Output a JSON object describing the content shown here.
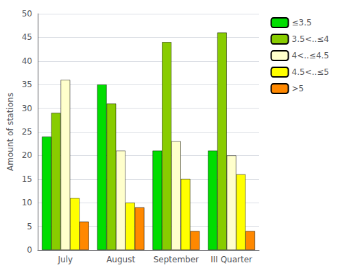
{
  "chart_data": {
    "type": "bar",
    "categories": [
      "July",
      "August",
      "September",
      "III Quarter"
    ],
    "series": [
      {
        "name": "≤3.5",
        "color": "#00dd00",
        "values": [
          24,
          35,
          21,
          21
        ]
      },
      {
        "name": "3.5<..≤4",
        "color": "#88cc00",
        "values": [
          29,
          31,
          44,
          46
        ]
      },
      {
        "name": "4<..≤4.5",
        "color": "#ffffcc",
        "values": [
          36,
          21,
          23,
          20
        ]
      },
      {
        "name": "4.5<..≤5",
        "color": "#ffff00",
        "values": [
          11,
          10,
          15,
          16
        ]
      },
      {
        "name": ">5",
        "color": "#ff8800",
        "values": [
          6,
          9,
          4,
          4
        ]
      }
    ],
    "ylabel": "Amount of stations",
    "ylim": [
      0,
      50
    ],
    "yticks": [
      0,
      5,
      10,
      15,
      20,
      25,
      30,
      35,
      40,
      45,
      50
    ],
    "grid": true,
    "legend": "upper right"
  }
}
